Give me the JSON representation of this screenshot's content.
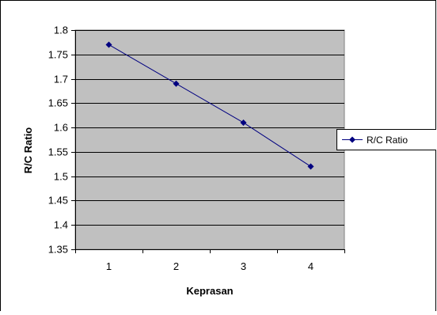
{
  "chart_data": {
    "type": "line",
    "title": "",
    "xlabel": "Keprasan",
    "ylabel": "R/C Ratio",
    "categories": [
      "1",
      "2",
      "3",
      "4"
    ],
    "series": [
      {
        "name": "R/C Ratio",
        "values": [
          1.77,
          1.69,
          1.61,
          1.52
        ]
      }
    ],
    "ylim": [
      1.35,
      1.8
    ],
    "yticks": [
      "1.35",
      "1.4",
      "1.45",
      "1.5",
      "1.55",
      "1.6",
      "1.65",
      "1.7",
      "1.75",
      "1.8"
    ],
    "grid": true,
    "legend_position": "right",
    "colors": {
      "line": "#000080",
      "plot_background": "#c0c0c0",
      "gridline": "#000000"
    }
  }
}
